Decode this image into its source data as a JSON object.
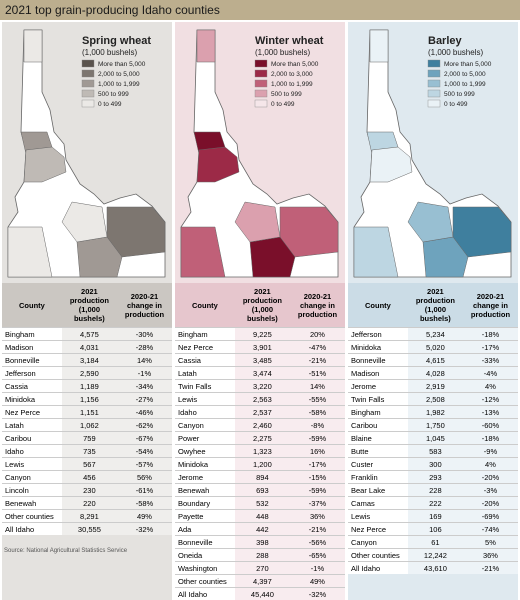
{
  "title": "2021 top grain-producing Idaho counties",
  "source": "Source: National Agricultural Statistics Service",
  "panels": [
    {
      "title": "Spring wheat",
      "unit": "(1,000 bushels)",
      "legend": [
        {
          "label": "More than 5,000",
          "color": "#5a534d"
        },
        {
          "label": "2,000 to 5,000",
          "color": "#7d7670"
        },
        {
          "label": "1,000 to 1,999",
          "color": "#a09994"
        },
        {
          "label": "500 to 999",
          "color": "#bfbab5"
        },
        {
          "label": "0 to 499",
          "color": "#ebe9e6"
        }
      ],
      "columns": [
        "County",
        "2021 production (1,000 bushels)",
        "2020-21 change in production"
      ],
      "rows": [
        [
          "Bingham",
          "4,575",
          "-30%"
        ],
        [
          "Madison",
          "4,031",
          "-28%"
        ],
        [
          "Bonneville",
          "3,184",
          "14%"
        ],
        [
          "Jefferson",
          "2,590",
          "-1%"
        ],
        [
          "Cassia",
          "1,189",
          "-34%"
        ],
        [
          "Minidoka",
          "1,156",
          "-27%"
        ],
        [
          "Nez Perce",
          "1,151",
          "-46%"
        ],
        [
          "Latah",
          "1,062",
          "-62%"
        ],
        [
          "Caribou",
          "759",
          "-67%"
        ],
        [
          "Idaho",
          "735",
          "-54%"
        ],
        [
          "Lewis",
          "567",
          "-57%"
        ],
        [
          "Canyon",
          "456",
          "56%"
        ],
        [
          "Lincoln",
          "230",
          "-61%"
        ],
        [
          "Benewah",
          "220",
          "-58%"
        ],
        [
          "Other counties",
          "8,291",
          "49%"
        ],
        [
          "All Idaho",
          "30,555",
          "-32%"
        ]
      ]
    },
    {
      "title": "Winter wheat",
      "unit": "(1,000 bushels)",
      "legend": [
        {
          "label": "More than 5,000",
          "color": "#7a0f2a"
        },
        {
          "label": "2,000 to 3,000",
          "color": "#9c2a47"
        },
        {
          "label": "1,000 to 1,999",
          "color": "#c06078"
        },
        {
          "label": "500 to 999",
          "color": "#dba0ae"
        },
        {
          "label": "0 to 499",
          "color": "#f5e6e9"
        }
      ],
      "columns": [
        "County",
        "2021 production (1,000 bushels)",
        "2020-21 change in production"
      ],
      "rows": [
        [
          "Bingham",
          "9,225",
          "20%"
        ],
        [
          "Nez Perce",
          "3,901",
          "-47%"
        ],
        [
          "Cassia",
          "3,485",
          "-21%"
        ],
        [
          "Latah",
          "3,474",
          "-51%"
        ],
        [
          "Twin Falls",
          "3,220",
          "14%"
        ],
        [
          "Lewis",
          "2,563",
          "-55%"
        ],
        [
          "Idaho",
          "2,537",
          "-58%"
        ],
        [
          "Canyon",
          "2,460",
          "-8%"
        ],
        [
          "Power",
          "2,275",
          "-59%"
        ],
        [
          "Owyhee",
          "1,323",
          "16%"
        ],
        [
          "Minidoka",
          "1,200",
          "-17%"
        ],
        [
          "Jerome",
          "894",
          "-15%"
        ],
        [
          "Benewah",
          "693",
          "-59%"
        ],
        [
          "Boundary",
          "532",
          "-37%"
        ],
        [
          "Payette",
          "448",
          "36%"
        ],
        [
          "Ada",
          "442",
          "-21%"
        ],
        [
          "Bonneville",
          "398",
          "-56%"
        ],
        [
          "Oneida",
          "288",
          "-65%"
        ],
        [
          "Washington",
          "270",
          "-1%"
        ],
        [
          "Other counties",
          "4,397",
          "49%"
        ],
        [
          "All Idaho",
          "45,440",
          "-32%"
        ]
      ]
    },
    {
      "title": "Barley",
      "unit": "(1,000 bushels)",
      "legend": [
        {
          "label": "More than 5,000",
          "color": "#3f7f9e"
        },
        {
          "label": "2,000 to 5,000",
          "color": "#6ea3bd"
        },
        {
          "label": "1,000 to 1,999",
          "color": "#98bfd2"
        },
        {
          "label": "500 to 999",
          "color": "#bdd6e2"
        },
        {
          "label": "0 to 499",
          "color": "#eaf2f6"
        }
      ],
      "columns": [
        "County",
        "2021 production (1,000 bushels)",
        "2020-21 change in production"
      ],
      "rows": [
        [
          "Jefferson",
          "5,234",
          "-18%"
        ],
        [
          "Minidoka",
          "5,020",
          "-17%"
        ],
        [
          "Bonneville",
          "4,615",
          "-33%"
        ],
        [
          "Madison",
          "4,028",
          "-4%"
        ],
        [
          "Jerome",
          "2,919",
          "4%"
        ],
        [
          "Twin Falls",
          "2,508",
          "-12%"
        ],
        [
          "Bingham",
          "1,982",
          "-13%"
        ],
        [
          "Caribou",
          "1,750",
          "-60%"
        ],
        [
          "Blaine",
          "1,045",
          "-18%"
        ],
        [
          "Butte",
          "583",
          "-9%"
        ],
        [
          "Custer",
          "300",
          "4%"
        ],
        [
          "Franklin",
          "293",
          "-20%"
        ],
        [
          "Bear Lake",
          "228",
          "-3%"
        ],
        [
          "Camas",
          "222",
          "-20%"
        ],
        [
          "Lewis",
          "169",
          "-69%"
        ],
        [
          "Nez Perce",
          "106",
          "-74%"
        ],
        [
          "Canyon",
          "61",
          "5%"
        ],
        [
          "Other counties",
          "12,242",
          "36%"
        ],
        [
          "All Idaho",
          "43,610",
          "-21%"
        ]
      ]
    }
  ]
}
